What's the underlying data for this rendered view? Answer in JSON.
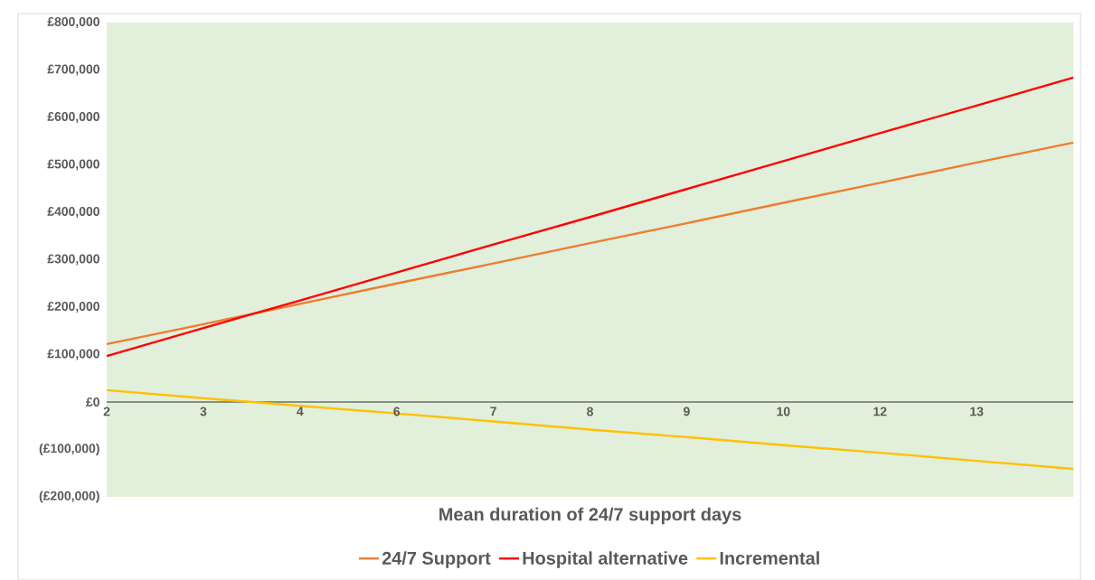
{
  "chart_data": {
    "type": "line",
    "xlabel": "Mean duration of 24/7 support days",
    "categories": [
      "2",
      "3",
      "4",
      "6",
      "7",
      "8",
      "9",
      "10",
      "12",
      "13",
      null
    ],
    "series": [
      {
        "name": "24/7 Support",
        "color": "#ed7d31",
        "values": [
          122000,
          164000,
          207000,
          250000,
          292000,
          335000,
          377000,
          420000,
          462000,
          505000,
          547000
        ]
      },
      {
        "name": "Hospital alternative",
        "color": "#ff0000",
        "values": [
          97000,
          156000,
          214000,
          273000,
          332000,
          390000,
          449000,
          508000,
          567000,
          625000,
          684000
        ]
      },
      {
        "name": "Incremental",
        "color": "#ffc000",
        "values": [
          25000,
          8000,
          -8000,
          -24000,
          -41000,
          -58000,
          -74000,
          -91000,
          -107000,
          -124000,
          -141000
        ]
      }
    ],
    "ylim": [
      -200000,
      800000
    ],
    "yticks": [
      {
        "value": -200000,
        "label": "(£200,000)"
      },
      {
        "value": -100000,
        "label": "(£100,000)"
      },
      {
        "value": 0,
        "label": "£0"
      },
      {
        "value": 100000,
        "label": "£100,000"
      },
      {
        "value": 200000,
        "label": "£200,000"
      },
      {
        "value": 300000,
        "label": "£300,000"
      },
      {
        "value": 400000,
        "label": "£400,000"
      },
      {
        "value": 500000,
        "label": "£500,000"
      },
      {
        "value": 600000,
        "label": "£600,000"
      },
      {
        "value": 700000,
        "label": "£700,000"
      },
      {
        "value": 800000,
        "label": "£800,000"
      }
    ],
    "legend": "bottom"
  }
}
